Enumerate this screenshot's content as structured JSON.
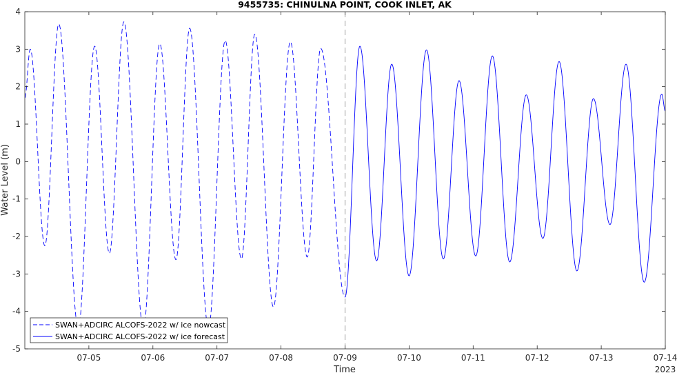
{
  "chart_data": {
    "type": "line",
    "title": "9455735: CHINULNA POINT, COOK INLET, AK",
    "xlabel": "Time",
    "ylabel": "Water Level (m)",
    "year_label": "2023",
    "xlim": [
      "2023-07-04 00:00",
      "2023-07-14 00:00"
    ],
    "ylim": [
      -5,
      4
    ],
    "yticks": [
      -5,
      -4,
      -3,
      -2,
      -1,
      0,
      1,
      2,
      3,
      4
    ],
    "xtick_labels": [
      "07-05",
      "07-06",
      "07-07",
      "07-08",
      "07-09",
      "07-10",
      "07-11",
      "07-12",
      "07-13",
      "07-14"
    ],
    "nowcast_end": "2023-07-09 00:00",
    "grid": false,
    "legend_position": "bottom-left",
    "series": [
      {
        "name": "SWAN+ADCIRC ALCOFS-2022 w/ ice nowcast",
        "style": "dashed",
        "color": "#0000ff",
        "extrema": [
          [
            "2023-07-04 00:00",
            1.7
          ],
          [
            "2023-07-04 02:02",
            3.0
          ],
          [
            "2023-07-04 07:30",
            -2.25
          ],
          [
            "2023-07-04 12:43",
            3.67
          ],
          [
            "2023-07-04 20:02",
            -4.45
          ],
          [
            "2023-07-05 02:10",
            3.08
          ],
          [
            "2023-07-05 07:41",
            -2.45
          ],
          [
            "2023-07-05 13:07",
            3.73
          ],
          [
            "2023-07-05 20:26",
            -4.45
          ],
          [
            "2023-07-06 02:34",
            3.15
          ],
          [
            "2023-07-06 08:38",
            -2.62
          ],
          [
            "2023-07-06 13:46",
            3.56
          ],
          [
            "2023-07-06 20:50",
            -4.45
          ],
          [
            "2023-07-07 03:05",
            3.23
          ],
          [
            "2023-07-07 09:10",
            -2.6
          ],
          [
            "2023-07-07 14:10",
            3.4
          ],
          [
            "2023-07-07 21:10",
            -3.88
          ],
          [
            "2023-07-08 03:30",
            3.2
          ],
          [
            "2023-07-08 09:50",
            -2.55
          ],
          [
            "2023-07-08 14:53",
            3.02
          ],
          [
            "2023-07-09 00:00",
            -3.62
          ]
        ]
      },
      {
        "name": "SWAN+ADCIRC ALCOFS-2022 w/ ice forecast",
        "style": "solid",
        "color": "#0000ff",
        "extrema": [
          [
            "2023-07-09 00:00",
            -3.62
          ],
          [
            "2023-07-09 05:34",
            3.08
          ],
          [
            "2023-07-09 11:50",
            -2.65
          ],
          [
            "2023-07-09 17:30",
            2.6
          ],
          [
            "2023-07-10 00:00",
            -3.05
          ],
          [
            "2023-07-10 06:31",
            2.98
          ],
          [
            "2023-07-10 12:50",
            -2.6
          ],
          [
            "2023-07-10 18:43",
            2.16
          ],
          [
            "2023-07-11 00:58",
            -2.52
          ],
          [
            "2023-07-11 07:12",
            2.82
          ],
          [
            "2023-07-11 13:43",
            -2.68
          ],
          [
            "2023-07-11 19:55",
            1.78
          ],
          [
            "2023-07-12 02:08",
            -2.05
          ],
          [
            "2023-07-12 08:12",
            2.67
          ],
          [
            "2023-07-12 14:53",
            -2.92
          ],
          [
            "2023-07-12 21:05",
            1.68
          ],
          [
            "2023-07-13 03:17",
            -1.68
          ],
          [
            "2023-07-13 09:17",
            2.6
          ],
          [
            "2023-07-13 16:07",
            -3.22
          ],
          [
            "2023-07-13 22:41",
            1.8
          ],
          [
            "2023-07-14 00:00",
            1.35
          ]
        ]
      }
    ]
  }
}
